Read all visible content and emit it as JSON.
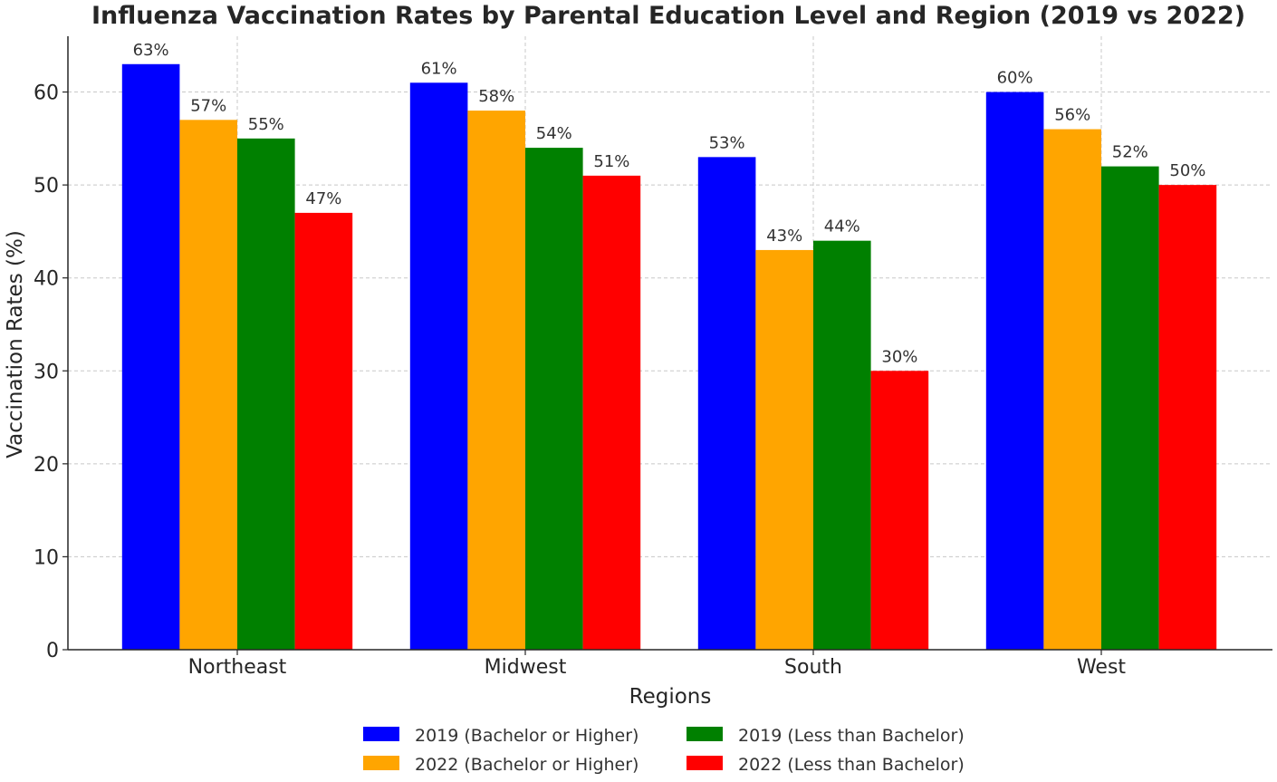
{
  "chart_data": {
    "type": "bar",
    "title": "Influenza Vaccination Rates by Parental Education Level and Region (2019 vs 2022)",
    "xlabel": "Regions",
    "ylabel": "Vaccination Rates (%)",
    "categories": [
      "Northeast",
      "Midwest",
      "South",
      "West"
    ],
    "ylim": [
      0,
      66
    ],
    "yticks": [
      0,
      10,
      20,
      30,
      40,
      50,
      60
    ],
    "grid": true,
    "legend_position": "bottom-center",
    "label_suffix": "%",
    "series": [
      {
        "name": "2019 (Bachelor or Higher)",
        "color": "#0000ff",
        "values": [
          63,
          61,
          53,
          60
        ]
      },
      {
        "name": "2022 (Bachelor or Higher)",
        "color": "#ffa500",
        "values": [
          57,
          58,
          43,
          56
        ]
      },
      {
        "name": "2019 (Less than Bachelor)",
        "color": "#008000",
        "values": [
          55,
          54,
          44,
          52
        ]
      },
      {
        "name": "2022 (Less than Bachelor)",
        "color": "#ff0000",
        "values": [
          47,
          51,
          30,
          50
        ]
      }
    ]
  }
}
